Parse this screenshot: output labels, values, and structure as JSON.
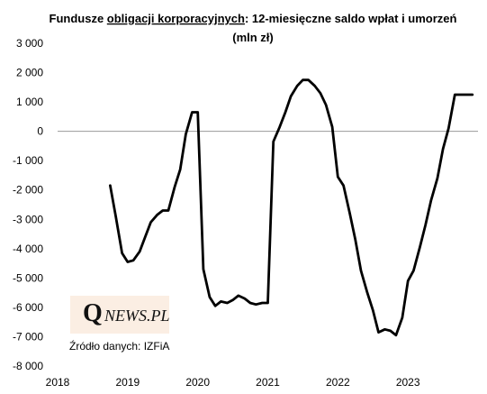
{
  "title_line1_pre": "Fundusze ",
  "title_line1_underlined": "obligacji korporacyjnych",
  "title_line1_post": ": 12-miesięczne saldo wpłat i umorzeń",
  "title_line2": "(mln zł)",
  "logo": {
    "letter": "Q",
    "text": "NEWS.PL"
  },
  "source": "Źródło danych: IZFiA",
  "colors": {
    "line": "#000000",
    "zero_line": "#9a9a9a",
    "logo_bg": "#fbeee3"
  },
  "chart_data": {
    "type": "line",
    "title": "Fundusze obligacji korporacyjnych: 12-miesięczne saldo wpłat i umorzeń (mln zł)",
    "xlabel": "",
    "ylabel": "",
    "xlim": [
      2018.0,
      2024.0
    ],
    "ylim": [
      -8000,
      3000
    ],
    "yticks": [
      3000,
      2000,
      1000,
      0,
      -1000,
      -2000,
      -3000,
      -4000,
      -5000,
      -6000,
      -7000,
      -8000
    ],
    "ytick_labels": [
      "3 000",
      "2 000",
      "1 000",
      "0",
      "-1 000",
      "-2 000",
      "-3 000",
      "-4 000",
      "-5 000",
      "-6 000",
      "-7 000",
      "-8 000"
    ],
    "xticks": [
      2018,
      2019,
      2020,
      2021,
      2022,
      2023
    ],
    "xtick_labels": [
      "2018",
      "2019",
      "2020",
      "2021",
      "2022",
      "2023"
    ],
    "grid": false,
    "legend": "none",
    "x": [
      2018.75,
      2018.83,
      2018.92,
      2019.0,
      2019.08,
      2019.17,
      2019.25,
      2019.33,
      2019.42,
      2019.5,
      2019.58,
      2019.67,
      2019.75,
      2019.83,
      2019.92,
      2020.0,
      2020.08,
      2020.17,
      2020.25,
      2020.33,
      2020.42,
      2020.5,
      2020.58,
      2020.67,
      2020.75,
      2020.83,
      2020.92,
      2021.0,
      2021.08,
      2021.17,
      2021.25,
      2021.33,
      2021.42,
      2021.5,
      2021.58,
      2021.67,
      2021.75,
      2021.83,
      2021.92,
      2022.0,
      2022.08,
      2022.17,
      2022.25,
      2022.33,
      2022.42,
      2022.5,
      2022.58,
      2022.67,
      2022.75,
      2022.83,
      2022.92,
      2023.0,
      2023.08,
      2023.17,
      2023.25,
      2023.33,
      2023.42,
      2023.5,
      2023.58,
      2023.67,
      2023.75,
      2023.83,
      2023.92
    ],
    "y": [
      -1850,
      -2900,
      -4150,
      -4450,
      -4400,
      -4100,
      -3600,
      -3100,
      -2850,
      -2700,
      -2700,
      -1900,
      -1300,
      -100,
      650,
      650,
      -4700,
      -5650,
      -5950,
      -5800,
      -5850,
      -5750,
      -5600,
      -5700,
      -5850,
      -5900,
      -5850,
      -5850,
      -350,
      150,
      650,
      1200,
      1550,
      1750,
      1750,
      1550,
      1300,
      900,
      150,
      -1550,
      -1850,
      -2800,
      -3700,
      -4750,
      -5500,
      -6100,
      -6850,
      -6750,
      -6800,
      -6950,
      -6350,
      -5100,
      -4750,
      -3950,
      -3200,
      -2350,
      -1600,
      -600,
      100,
      1250,
      1250,
      1250,
      1250
    ]
  }
}
